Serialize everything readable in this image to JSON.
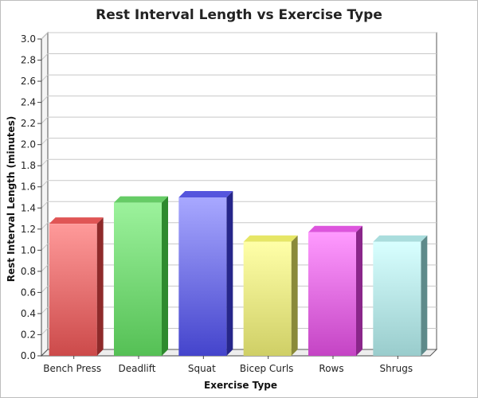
{
  "chart_data": {
    "type": "bar",
    "title": "Rest Interval Length vs Exercise Type",
    "xlabel": "Exercise Type",
    "ylabel": "Rest Interval Length (minutes)",
    "categories": [
      "Bench Press",
      "Deadlift",
      "Squat",
      "Bicep Curls",
      "Rows",
      "Shrugs"
    ],
    "values": [
      1.25,
      1.45,
      1.5,
      1.08,
      1.17,
      1.08
    ],
    "ylim": [
      0,
      3.0
    ],
    "yticks": [
      "0.0",
      "0.2",
      "0.4",
      "0.6",
      "0.8",
      "1.0",
      "1.2",
      "1.4",
      "1.6",
      "1.8",
      "2.0",
      "2.2",
      "2.4",
      "2.6",
      "2.8",
      "3.0"
    ],
    "grid": true,
    "style": "3d",
    "colors": [
      {
        "top": "#ff9a9a",
        "bottom": "#cc4a4a",
        "side": "#8e2a2a",
        "cap": "#e05555"
      },
      {
        "top": "#9cf29c",
        "bottom": "#55c055",
        "side": "#2e8a2e",
        "cap": "#66cc66"
      },
      {
        "top": "#a8a8ff",
        "bottom": "#4444cc",
        "side": "#26268a",
        "cap": "#5555dd"
      },
      {
        "top": "#ffffa8",
        "bottom": "#cfcf66",
        "side": "#8a8a3a",
        "cap": "#e6e666"
      },
      {
        "top": "#ff9aff",
        "bottom": "#c444c4",
        "side": "#8a268a",
        "cap": "#dd55dd"
      },
      {
        "top": "#d8ffff",
        "bottom": "#99cccc",
        "side": "#5e8a8a",
        "cap": "#aadddd"
      }
    ]
  }
}
